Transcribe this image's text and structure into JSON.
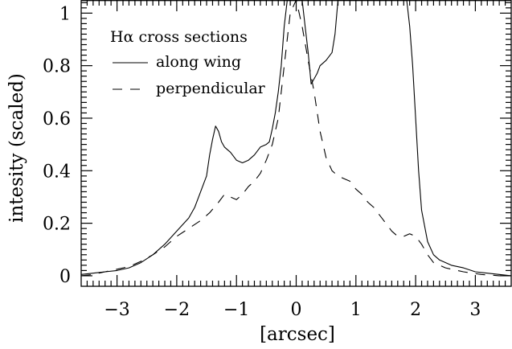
{
  "chart_data": {
    "type": "line",
    "xlabel": "[arcsec]",
    "ylabel": "intesity (scaled)",
    "xlim": [
      -3.6,
      3.6
    ],
    "ylim": [
      -0.04,
      1.05
    ],
    "xticks": [
      -3,
      -2,
      -1,
      0,
      1,
      2,
      3
    ],
    "xtick_labels": [
      "−3",
      "−2",
      "−1",
      "0",
      "1",
      "2",
      "3"
    ],
    "yticks": [
      0,
      0.2,
      0.4,
      0.6,
      0.8,
      1
    ],
    "ytick_labels": [
      "0",
      "0.2",
      "0.4",
      "0.6",
      "0.8",
      "1"
    ],
    "grid": false,
    "legend": {
      "title": "Hα cross sections",
      "placement": "top-left",
      "entries": [
        {
          "label": "along wing",
          "style": "solid"
        },
        {
          "label": "perpendicular",
          "style": "dashed"
        }
      ]
    },
    "series": [
      {
        "name": "along wing",
        "style": "solid",
        "points": [
          [
            -3.6,
            0.005
          ],
          [
            -3.4,
            0.01
          ],
          [
            -3.2,
            0.015
          ],
          [
            -3.0,
            0.02
          ],
          [
            -2.8,
            0.03
          ],
          [
            -2.6,
            0.05
          ],
          [
            -2.4,
            0.08
          ],
          [
            -2.2,
            0.12
          ],
          [
            -2.0,
            0.17
          ],
          [
            -1.8,
            0.22
          ],
          [
            -1.7,
            0.26
          ],
          [
            -1.6,
            0.32
          ],
          [
            -1.5,
            0.38
          ],
          [
            -1.45,
            0.46
          ],
          [
            -1.4,
            0.52
          ],
          [
            -1.35,
            0.57
          ],
          [
            -1.3,
            0.55
          ],
          [
            -1.25,
            0.51
          ],
          [
            -1.2,
            0.49
          ],
          [
            -1.1,
            0.47
          ],
          [
            -1.0,
            0.44
          ],
          [
            -0.9,
            0.43
          ],
          [
            -0.8,
            0.44
          ],
          [
            -0.7,
            0.46
          ],
          [
            -0.6,
            0.49
          ],
          [
            -0.5,
            0.5
          ],
          [
            -0.45,
            0.51
          ],
          [
            -0.4,
            0.56
          ],
          [
            -0.35,
            0.62
          ],
          [
            -0.3,
            0.7
          ],
          [
            -0.25,
            0.8
          ],
          [
            -0.2,
            0.95
          ],
          [
            -0.15,
            1.05
          ],
          [
            0.1,
            1.05
          ],
          [
            0.15,
            0.95
          ],
          [
            0.2,
            0.85
          ],
          [
            0.25,
            0.73
          ],
          [
            0.3,
            0.75
          ],
          [
            0.35,
            0.77
          ],
          [
            0.4,
            0.8
          ],
          [
            0.5,
            0.82
          ],
          [
            0.6,
            0.85
          ],
          [
            0.65,
            0.92
          ],
          [
            0.7,
            1.05
          ],
          [
            1.85,
            1.05
          ],
          [
            1.9,
            0.95
          ],
          [
            1.95,
            0.8
          ],
          [
            2.0,
            0.6
          ],
          [
            2.05,
            0.4
          ],
          [
            2.1,
            0.25
          ],
          [
            2.2,
            0.13
          ],
          [
            2.3,
            0.08
          ],
          [
            2.4,
            0.06
          ],
          [
            2.6,
            0.04
          ],
          [
            2.8,
            0.03
          ],
          [
            3.0,
            0.015
          ],
          [
            3.2,
            0.01
          ],
          [
            3.4,
            0.005
          ],
          [
            3.6,
            0.0
          ]
        ]
      },
      {
        "name": "perpendicular",
        "style": "dashed",
        "points": [
          [
            -3.6,
            0.0
          ],
          [
            -3.4,
            0.005
          ],
          [
            -3.2,
            0.015
          ],
          [
            -3.0,
            0.025
          ],
          [
            -2.8,
            0.035
          ],
          [
            -2.6,
            0.055
          ],
          [
            -2.4,
            0.08
          ],
          [
            -2.2,
            0.11
          ],
          [
            -2.0,
            0.15
          ],
          [
            -1.8,
            0.18
          ],
          [
            -1.6,
            0.21
          ],
          [
            -1.45,
            0.24
          ],
          [
            -1.3,
            0.28
          ],
          [
            -1.2,
            0.31
          ],
          [
            -1.1,
            0.3
          ],
          [
            -1.0,
            0.29
          ],
          [
            -0.9,
            0.31
          ],
          [
            -0.8,
            0.34
          ],
          [
            -0.7,
            0.36
          ],
          [
            -0.6,
            0.39
          ],
          [
            -0.5,
            0.44
          ],
          [
            -0.4,
            0.5
          ],
          [
            -0.3,
            0.6
          ],
          [
            -0.2,
            0.8
          ],
          [
            -0.1,
            1.0
          ],
          [
            0.0,
            1.05
          ],
          [
            0.1,
            0.95
          ],
          [
            0.2,
            0.82
          ],
          [
            0.3,
            0.7
          ],
          [
            0.4,
            0.55
          ],
          [
            0.5,
            0.45
          ],
          [
            0.6,
            0.4
          ],
          [
            0.7,
            0.38
          ],
          [
            0.8,
            0.37
          ],
          [
            0.9,
            0.36
          ],
          [
            1.0,
            0.33
          ],
          [
            1.1,
            0.31
          ],
          [
            1.2,
            0.28
          ],
          [
            1.3,
            0.26
          ],
          [
            1.4,
            0.23
          ],
          [
            1.5,
            0.2
          ],
          [
            1.6,
            0.17
          ],
          [
            1.7,
            0.15
          ],
          [
            1.8,
            0.15
          ],
          [
            1.9,
            0.16
          ],
          [
            2.0,
            0.15
          ],
          [
            2.1,
            0.12
          ],
          [
            2.2,
            0.08
          ],
          [
            2.3,
            0.05
          ],
          [
            2.5,
            0.03
          ],
          [
            2.8,
            0.015
          ],
          [
            3.1,
            0.005
          ],
          [
            3.4,
            0.0
          ],
          [
            3.6,
            0.0
          ]
        ]
      }
    ]
  }
}
